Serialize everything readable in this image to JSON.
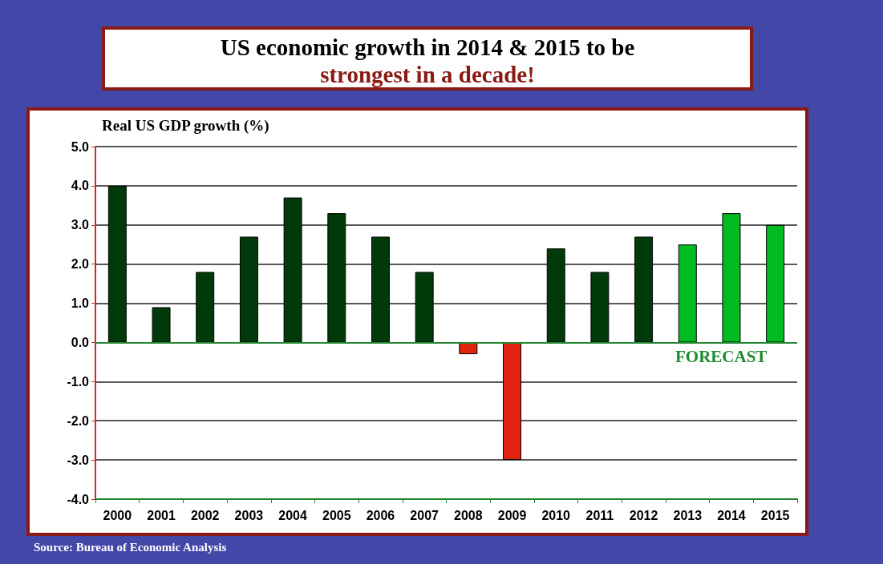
{
  "chart_data": {
    "type": "bar",
    "title": "US economic growth in 2014 & 2015 to be",
    "subtitle": "strongest in a decade!",
    "ylabel": "Real US GDP growth (%)",
    "categories": [
      "2000",
      "2001",
      "2002",
      "2003",
      "2004",
      "2005",
      "2006",
      "2007",
      "2008",
      "2009",
      "2010",
      "2011",
      "2012",
      "2013",
      "2014",
      "2015"
    ],
    "values": [
      4.0,
      0.9,
      1.8,
      2.7,
      3.7,
      3.3,
      2.7,
      1.8,
      -0.3,
      -3.0,
      2.4,
      1.8,
      2.7,
      2.5,
      3.3,
      3.0
    ],
    "colors": [
      "#003a0a",
      "#003a0a",
      "#003a0a",
      "#003a0a",
      "#003a0a",
      "#003a0a",
      "#003a0a",
      "#003a0a",
      "#e02410",
      "#e02410",
      "#003a0a",
      "#003a0a",
      "#003a0a",
      "#00bb22",
      "#00bb22",
      "#00bb22"
    ],
    "ylim": [
      -4,
      5
    ],
    "yticks": [
      {
        "value": -4,
        "label": "-4.0"
      },
      {
        "value": -3,
        "label": "-3.0"
      },
      {
        "value": -2,
        "label": "-2.0"
      },
      {
        "value": -1,
        "label": "-1.0"
      },
      {
        "value": 0,
        "label": "0.0"
      },
      {
        "value": 1,
        "label": "1.0"
      },
      {
        "value": 2,
        "label": "2.0"
      },
      {
        "value": 3,
        "label": "3.0"
      },
      {
        "value": 4,
        "label": "4.0"
      },
      {
        "value": 5,
        "label": "5.0"
      }
    ],
    "grid": "y",
    "ref_lines": [
      {
        "axis": "y",
        "value": 0,
        "color": "#228833"
      }
    ],
    "annotations": [
      "FORECAST",
      "Source: Bureau of Economic Analysis"
    ]
  }
}
